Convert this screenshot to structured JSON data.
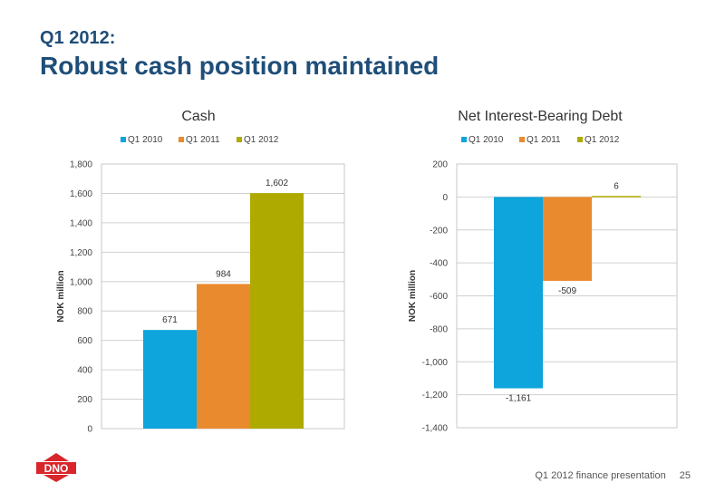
{
  "header": {
    "supertitle": "Q1 2012:",
    "title": "Robust cash position maintained"
  },
  "footer": {
    "presentation": "Q1 2012 finance presentation",
    "page": "25"
  },
  "logo": {
    "text": "DNO",
    "color": "#d9262b"
  },
  "colors": {
    "q1_2010": "#0ea4dc",
    "q1_2011": "#ea8a2e",
    "q1_2012": "#aeaa00"
  },
  "chart_data": [
    {
      "type": "bar",
      "title": "Cash",
      "ylabel": "NOK million",
      "ylim": [
        0,
        1800
      ],
      "yticks": [
        0,
        200,
        400,
        600,
        800,
        1000,
        1200,
        1400,
        1600,
        1800
      ],
      "ytick_labels": [
        "0",
        "200",
        "400",
        "600",
        "800",
        "1,000",
        "1,200",
        "1,400",
        "1,600",
        "1,800"
      ],
      "grid": true,
      "legend": "top",
      "series": [
        {
          "name": "Q1 2010",
          "value": 671,
          "label": "671",
          "color": "#0ea4dc"
        },
        {
          "name": "Q1 2011",
          "value": 984,
          "label": "984",
          "color": "#ea8a2e"
        },
        {
          "name": "Q1 2012",
          "value": 1602,
          "label": "1,602",
          "color": "#aeaa00"
        }
      ]
    },
    {
      "type": "bar",
      "title": "Net Interest-Bearing Debt",
      "ylabel": "NOK million",
      "ylim": [
        -1400,
        200
      ],
      "yticks": [
        -1400,
        -1200,
        -1000,
        -800,
        -600,
        -400,
        -200,
        0,
        200
      ],
      "ytick_labels": [
        "-1,400",
        "-1,200",
        "-1,000",
        "-800",
        "-600",
        "-400",
        "-200",
        "0",
        "200"
      ],
      "grid": true,
      "legend": "top",
      "series": [
        {
          "name": "Q1 2010",
          "value": -1161,
          "label": "-1,161",
          "color": "#0ea4dc"
        },
        {
          "name": "Q1 2011",
          "value": -509,
          "label": "-509",
          "color": "#ea8a2e"
        },
        {
          "name": "Q1 2012",
          "value": 6,
          "label": "6",
          "color": "#aeaa00"
        }
      ]
    }
  ]
}
